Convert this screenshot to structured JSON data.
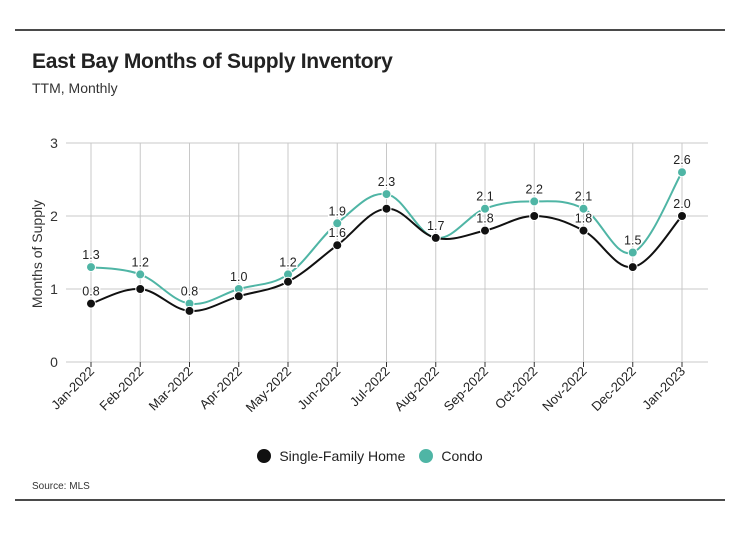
{
  "header": {
    "title": "East Bay Months of Supply Inventory",
    "subtitle": "TTM, Monthly"
  },
  "footer": {
    "source": "Source:  MLS"
  },
  "colors": {
    "single_family": "#111111",
    "condo": "#4fb5a5",
    "grid": "#c8c8c8"
  },
  "chart_data": {
    "type": "line",
    "title": "East Bay Months of Supply Inventory",
    "subtitle": "TTM, Monthly",
    "xlabel": "",
    "ylabel": "Months of Supply",
    "ylim": [
      0,
      3
    ],
    "yticks": [
      0,
      1,
      2,
      3
    ],
    "grid": true,
    "legend_position": "bottom",
    "categories": [
      "Jan-2022",
      "Feb-2022",
      "Mar-2022",
      "Apr-2022",
      "May-2022",
      "Jun-2022",
      "Jul-2022",
      "Aug-2022",
      "Sep-2022",
      "Oct-2022",
      "Nov-2022",
      "Dec-2022",
      "Jan-2023"
    ],
    "series": [
      {
        "name": "Single-Family Home",
        "color": "#111111",
        "values": [
          0.8,
          1.0,
          0.7,
          0.9,
          1.1,
          1.6,
          2.1,
          1.7,
          1.8,
          2.0,
          1.8,
          1.3,
          2.0
        ],
        "labels": [
          "0.8",
          "",
          "",
          "",
          "",
          "1.6",
          "",
          "",
          "1.8",
          "",
          "1.8",
          "",
          "2.0"
        ]
      },
      {
        "name": "Condo",
        "color": "#4fb5a5",
        "values": [
          1.3,
          1.2,
          0.8,
          1.0,
          1.2,
          1.9,
          2.3,
          1.7,
          2.1,
          2.2,
          2.1,
          1.5,
          2.6
        ],
        "labels": [
          "1.3",
          "1.2",
          "0.8",
          "1.0",
          "1.2",
          "1.9",
          "2.3",
          "1.7",
          "2.1",
          "2.2",
          "2.1",
          "1.5",
          "2.6"
        ]
      }
    ]
  }
}
